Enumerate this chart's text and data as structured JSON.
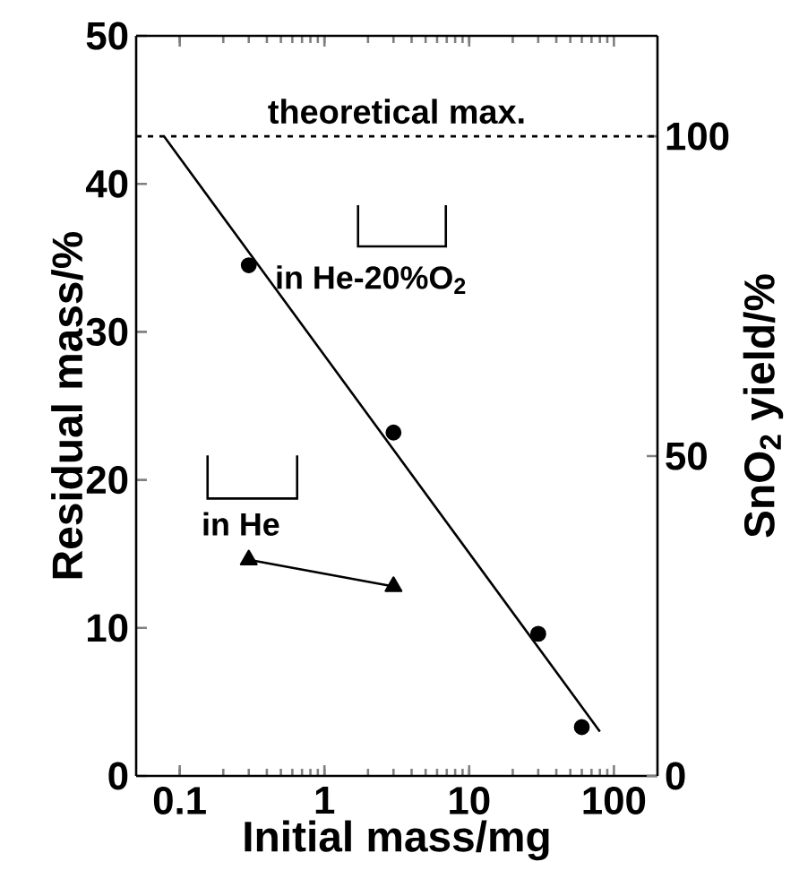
{
  "chart_data": {
    "type": "scatter",
    "xlabel": "Initial mass/mg",
    "ylabel": "Residual mass/%",
    "y2label": "SnO$_{2}$ yield/%",
    "log": "x",
    "xlim": [
      0.05,
      200
    ],
    "xticks": [
      0.1,
      1,
      10,
      100
    ],
    "ylim": [
      0,
      50
    ],
    "yticks": [
      0,
      10,
      20,
      30,
      40,
      50
    ],
    "y2lim": [
      0,
      115.7
    ],
    "y2ticks": [
      0,
      50,
      100
    ],
    "grid": false,
    "legend": "left",
    "ref_lines": [
      {
        "axis": "y2",
        "value": 100,
        "label": "theoretical max.",
        "line_style": "dashed"
      }
    ],
    "series": [
      {
        "name": "in He-20%O$_{2}$",
        "color": "#000000",
        "marker": "circle",
        "x": [
          0.3,
          3,
          30,
          60
        ],
        "values": [
          34.5,
          23.2,
          9.6,
          3.3
        ]
      },
      {
        "type": "line",
        "color": "#000000",
        "marker": "none",
        "x": [
          0.078,
          80
        ],
        "values": [
          43.2,
          3.0
        ]
      },
      {
        "type": "line",
        "name": "in He",
        "color": "#000000",
        "marker": "triangle",
        "x": [
          0.3,
          3
        ],
        "values": [
          14.6,
          12.8
        ]
      }
    ]
  }
}
